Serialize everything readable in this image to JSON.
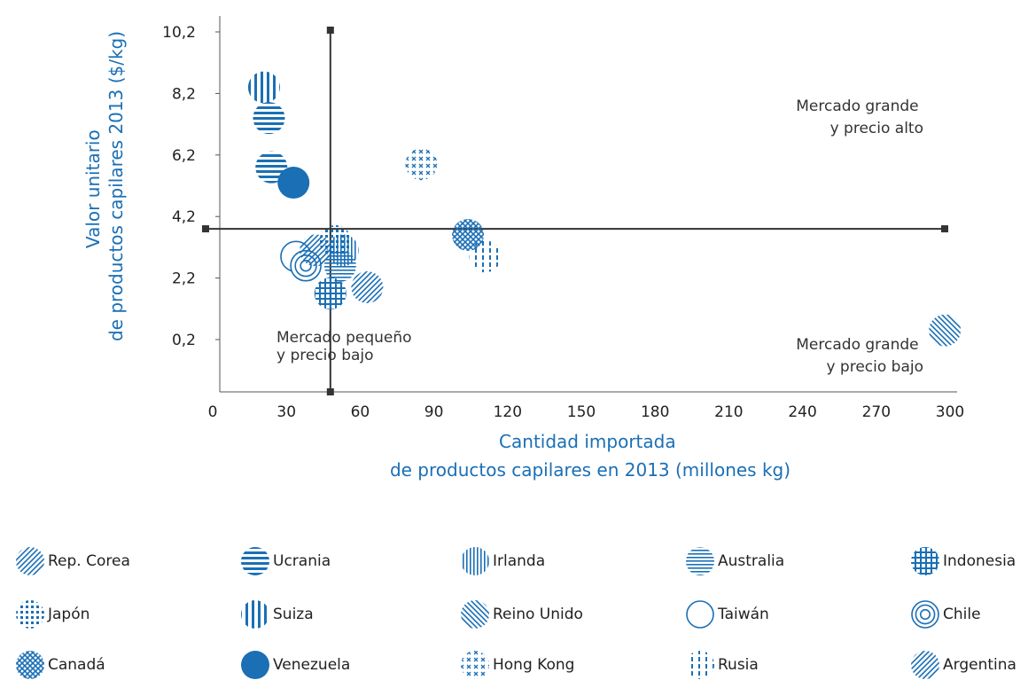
{
  "chart_data": {
    "type": "scatter",
    "xlabel": [
      "Cantidad importada",
      "de productos capilares en 2013 (millones kg)"
    ],
    "ylabel": [
      "Valor unitario",
      "de productos capilares 2013 ($/kg)"
    ],
    "x_ticks": [
      "0",
      "30",
      "60",
      "90",
      "120",
      "150",
      "180",
      "210",
      "240",
      "270",
      "300"
    ],
    "y_ticks": [
      "0,2",
      "2,2",
      "4,2",
      "6,2",
      "8,2",
      "10,2"
    ],
    "xlim": [
      0,
      300
    ],
    "ylim": [
      -1.5,
      10.2
    ],
    "divider_x": 45,
    "divider_y": 3.8,
    "quadrant_labels": {
      "top_right": [
        "Mercado grande",
        "y precio alto"
      ],
      "bottom_right": [
        "Mercado grande",
        "y precio bajo"
      ],
      "bottom_left": [
        "Mercado pequeño",
        "y precio bajo"
      ]
    },
    "series": [
      {
        "name": "Rep. Corea",
        "pattern": "diag-hatch",
        "points": [
          {
            "x": 60,
            "y": 1.9
          }
        ]
      },
      {
        "name": "Ucrania",
        "pattern": "hstripe",
        "points": [
          {
            "x": 20,
            "y": 7.4
          },
          {
            "x": 21,
            "y": 5.8
          }
        ]
      },
      {
        "name": "Irlanda",
        "pattern": "vstripe-fine",
        "points": [
          {
            "x": 50,
            "y": 3.1
          }
        ]
      },
      {
        "name": "Australia",
        "pattern": "hstripe-fine",
        "points": [
          {
            "x": 49,
            "y": 2.6
          }
        ]
      },
      {
        "name": "Indonesia",
        "pattern": "grid",
        "points": [
          {
            "x": 45,
            "y": 1.7
          }
        ]
      },
      {
        "name": "Japón",
        "pattern": "dot-grid",
        "points": [
          {
            "x": 47,
            "y": 3.4
          }
        ]
      },
      {
        "name": "Suiza",
        "pattern": "vstripe",
        "points": [
          {
            "x": 18,
            "y": 8.4
          }
        ]
      },
      {
        "name": "Reino Unido",
        "pattern": "diag-hatch-rev",
        "points": [
          {
            "x": 295,
            "y": 0.5
          }
        ]
      },
      {
        "name": "Taiwán",
        "pattern": "ring",
        "points": [
          {
            "x": 31,
            "y": 2.9
          }
        ]
      },
      {
        "name": "Chile",
        "pattern": "concentric",
        "points": [
          {
            "x": 35,
            "y": 2.6
          }
        ]
      },
      {
        "name": "Canadá",
        "pattern": "crosshatch",
        "points": [
          {
            "x": 101,
            "y": 3.6
          }
        ]
      },
      {
        "name": "Venezuela",
        "pattern": "solid",
        "points": [
          {
            "x": 30,
            "y": 5.3
          }
        ]
      },
      {
        "name": "Hong Kong",
        "pattern": "x-dots",
        "points": [
          {
            "x": 82,
            "y": 5.9
          }
        ]
      },
      {
        "name": "Rusia",
        "pattern": "dash-vstripe",
        "points": [
          {
            "x": 108,
            "y": 2.9
          }
        ]
      },
      {
        "name": "Argentina",
        "pattern": "diag-hatch",
        "points": [
          {
            "x": 39,
            "y": 3.1
          }
        ]
      }
    ],
    "color": "#1a6fb5"
  },
  "legend": {
    "items": [
      "Rep. Corea",
      "Ucrania",
      "Irlanda",
      "Australia",
      "Indonesia",
      "Japón",
      "Suiza",
      "Reino Unido",
      "Taiwán",
      "Chile",
      "Canadá",
      "Venezuela",
      "Hong Kong",
      "Rusia",
      "Argentina"
    ]
  }
}
